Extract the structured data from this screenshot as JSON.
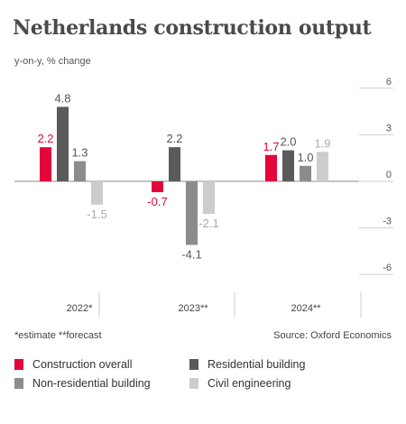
{
  "title": "Netherlands construction output",
  "subtitle": "y-on-y, % change",
  "notes": {
    "left": "*estimate  **forecast",
    "right": "Source: Oxford Economics"
  },
  "chart_data": {
    "type": "bar",
    "categories": [
      "2022*",
      "2023**",
      "2024**"
    ],
    "series": [
      {
        "name": "Construction overall",
        "color": "#e2063a",
        "values": [
          2.2,
          -0.7,
          1.7
        ]
      },
      {
        "name": "Residential building",
        "color": "#5a5a5a",
        "values": [
          4.8,
          2.2,
          2.0
        ]
      },
      {
        "name": "Non-residential building",
        "color": "#8c8c8c",
        "values": [
          1.3,
          -4.1,
          1.0
        ]
      },
      {
        "name": "Civil engineering",
        "color": "#cccccc",
        "values": [
          -1.5,
          -2.1,
          1.9
        ]
      }
    ],
    "yticks": [
      6,
      3,
      0,
      -3,
      -6
    ],
    "ylim": [
      -6.5,
      7.5
    ],
    "grid": true,
    "legend_position": "bottom"
  }
}
